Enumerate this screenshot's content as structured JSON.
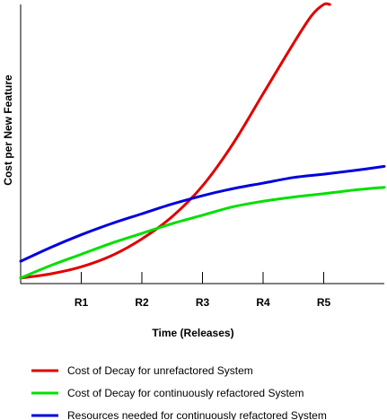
{
  "chart_data": {
    "type": "line",
    "title": "",
    "xlabel": "Time (Releases)",
    "ylabel": "Cost per New Feature",
    "x_tick_labels": [
      "R1",
      "R2",
      "R3",
      "R4",
      "R5"
    ],
    "x_tick_positions": [
      1,
      2,
      3,
      4,
      5
    ],
    "xlim": [
      0,
      6
    ],
    "ylim": [
      0,
      10
    ],
    "grid": false,
    "legend_position": "bottom",
    "series": [
      {
        "name": "Cost of Decay for unrefactored System",
        "color": "#e00000",
        "x": [
          0.0,
          0.5,
          1.0,
          1.5,
          2.0,
          2.5,
          3.0,
          3.5,
          4.0,
          4.5,
          4.8,
          5.0,
          5.1
        ],
        "y": [
          0.2,
          0.35,
          0.6,
          1.0,
          1.6,
          2.4,
          3.5,
          5.0,
          6.8,
          8.6,
          9.6,
          10.0,
          10.0
        ]
      },
      {
        "name": "Cost of Decay for continuously refactored System",
        "color": "#00e000",
        "x": [
          0.0,
          0.5,
          1.0,
          1.5,
          2.0,
          2.5,
          3.0,
          3.5,
          4.0,
          4.5,
          5.0,
          5.5,
          6.0
        ],
        "y": [
          0.2,
          0.65,
          1.05,
          1.45,
          1.8,
          2.15,
          2.45,
          2.75,
          2.95,
          3.1,
          3.22,
          3.35,
          3.45
        ]
      },
      {
        "name": "Resources needed for continuously refactored System",
        "color": "#0000e0",
        "x": [
          0.0,
          0.5,
          1.0,
          1.5,
          2.0,
          2.5,
          3.0,
          3.5,
          4.0,
          4.5,
          5.0,
          5.5,
          6.0
        ],
        "y": [
          0.8,
          1.3,
          1.75,
          2.15,
          2.5,
          2.85,
          3.15,
          3.4,
          3.6,
          3.8,
          3.92,
          4.05,
          4.2
        ]
      }
    ]
  }
}
